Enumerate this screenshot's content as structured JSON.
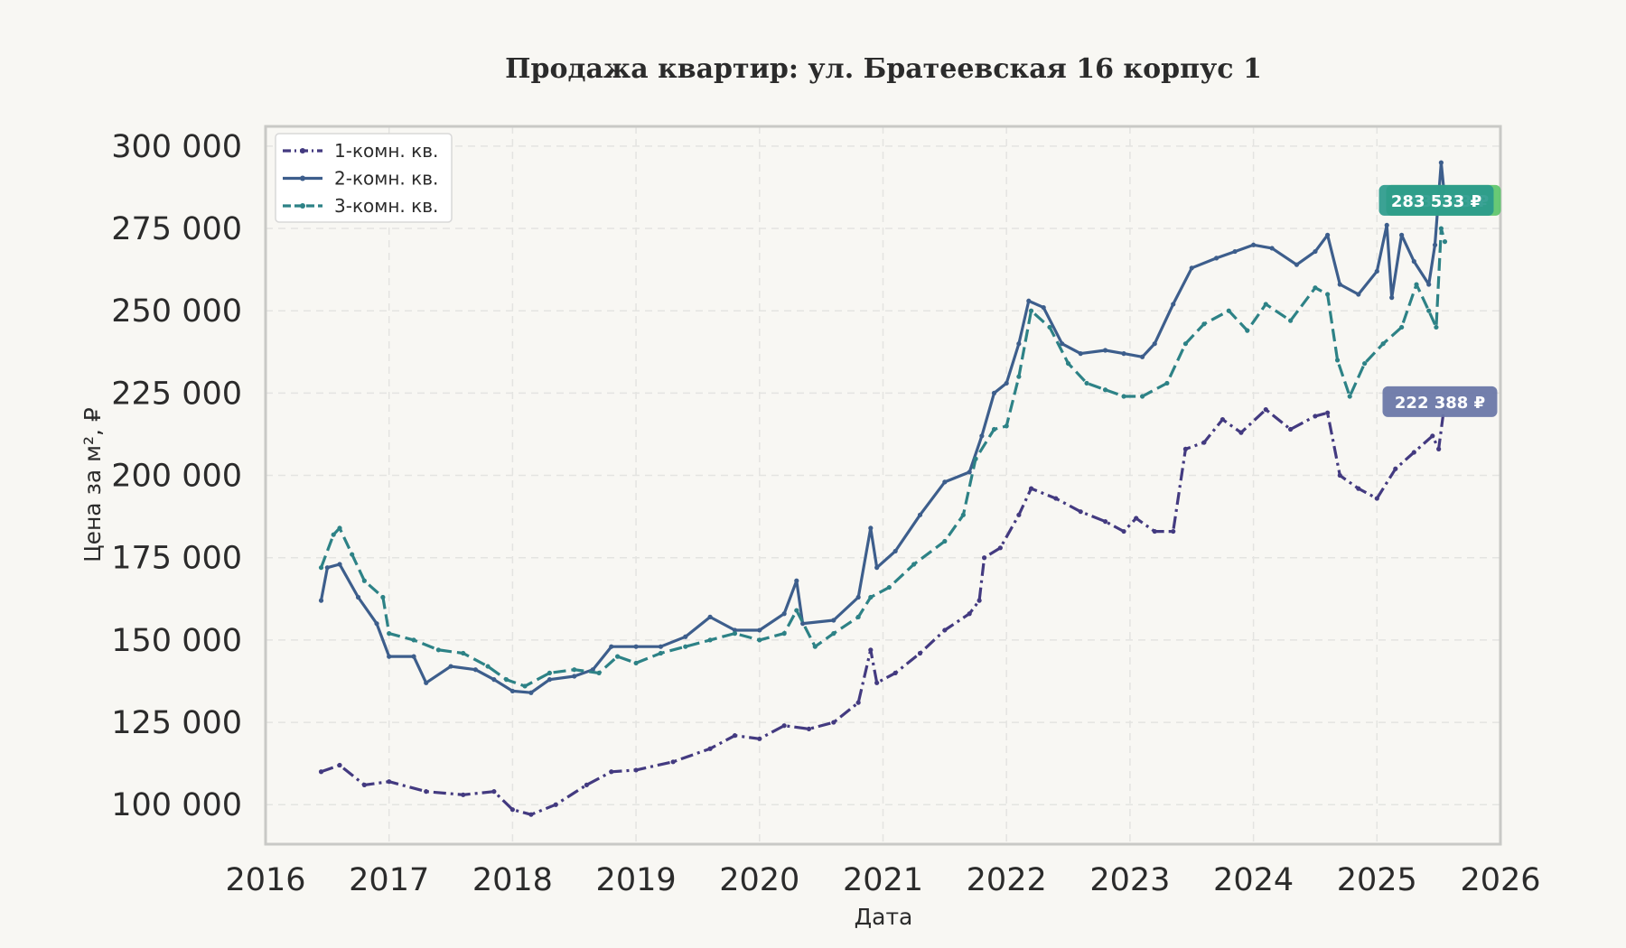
{
  "chart_data": {
    "type": "line",
    "title": "Продажа квартир: ул. Братеевская 16 корпус 1",
    "xlabel": "Дата",
    "ylabel": "Цена за м², ₽",
    "xlim": [
      2016,
      2026
    ],
    "ylim": [
      88000,
      306000
    ],
    "x_ticks": [
      2016,
      2017,
      2018,
      2019,
      2020,
      2021,
      2022,
      2023,
      2024,
      2025,
      2026
    ],
    "x_tick_labels": [
      "2016",
      "2017",
      "2018",
      "2019",
      "2020",
      "2021",
      "2022",
      "2023",
      "2024",
      "2025",
      "2026"
    ],
    "y_ticks": [
      100000,
      125000,
      150000,
      175000,
      200000,
      225000,
      250000,
      275000,
      300000
    ],
    "y_tick_labels": [
      "100 000",
      "125 000",
      "150 000",
      "175 000",
      "200 000",
      "225 000",
      "250 000",
      "275 000",
      "300 000"
    ],
    "grid": true,
    "legend_position": "top-left",
    "series": [
      {
        "name": "1-комн. кв.",
        "color": "#433a80",
        "dash": "dashdot",
        "points": [
          [
            2016.45,
            110000
          ],
          [
            2016.6,
            112000
          ],
          [
            2016.8,
            106000
          ],
          [
            2017.0,
            107000
          ],
          [
            2017.3,
            104000
          ],
          [
            2017.6,
            103000
          ],
          [
            2017.85,
            104000
          ],
          [
            2018.0,
            98500
          ],
          [
            2018.15,
            97000
          ],
          [
            2018.35,
            100000
          ],
          [
            2018.6,
            106000
          ],
          [
            2018.8,
            110000
          ],
          [
            2019.0,
            110500
          ],
          [
            2019.3,
            113000
          ],
          [
            2019.6,
            117000
          ],
          [
            2019.8,
            121000
          ],
          [
            2020.0,
            120000
          ],
          [
            2020.2,
            124000
          ],
          [
            2020.4,
            123000
          ],
          [
            2020.6,
            125000
          ],
          [
            2020.8,
            131000
          ],
          [
            2020.9,
            147000
          ],
          [
            2020.95,
            137000
          ],
          [
            2021.1,
            140000
          ],
          [
            2021.3,
            146000
          ],
          [
            2021.5,
            153000
          ],
          [
            2021.7,
            158000
          ],
          [
            2021.78,
            162000
          ],
          [
            2021.82,
            175000
          ],
          [
            2021.95,
            178000
          ],
          [
            2022.1,
            188000
          ],
          [
            2022.2,
            196000
          ],
          [
            2022.4,
            193000
          ],
          [
            2022.6,
            189000
          ],
          [
            2022.8,
            186000
          ],
          [
            2022.95,
            183000
          ],
          [
            2023.05,
            187000
          ],
          [
            2023.2,
            183000
          ],
          [
            2023.35,
            183000
          ],
          [
            2023.45,
            208000
          ],
          [
            2023.6,
            210000
          ],
          [
            2023.75,
            217000
          ],
          [
            2023.9,
            213000
          ],
          [
            2024.1,
            220000
          ],
          [
            2024.3,
            214000
          ],
          [
            2024.5,
            218000
          ],
          [
            2024.6,
            219000
          ],
          [
            2024.7,
            200000
          ],
          [
            2024.85,
            196000
          ],
          [
            2025.0,
            193000
          ],
          [
            2025.15,
            202000
          ],
          [
            2025.3,
            207000
          ],
          [
            2025.45,
            212000
          ],
          [
            2025.5,
            208000
          ],
          [
            2025.55,
            222388
          ]
        ]
      },
      {
        "name": "2-комн. кв.",
        "color": "#3d5e8c",
        "dash": "solid",
        "points": [
          [
            2016.45,
            162000
          ],
          [
            2016.5,
            172000
          ],
          [
            2016.6,
            173000
          ],
          [
            2016.75,
            163000
          ],
          [
            2016.9,
            155000
          ],
          [
            2017.0,
            145000
          ],
          [
            2017.2,
            145000
          ],
          [
            2017.3,
            137000
          ],
          [
            2017.5,
            142000
          ],
          [
            2017.7,
            141000
          ],
          [
            2017.85,
            138000
          ],
          [
            2018.0,
            134500
          ],
          [
            2018.15,
            134000
          ],
          [
            2018.3,
            138000
          ],
          [
            2018.5,
            139000
          ],
          [
            2018.65,
            141000
          ],
          [
            2018.8,
            148000
          ],
          [
            2019.0,
            148000
          ],
          [
            2019.2,
            148000
          ],
          [
            2019.4,
            151000
          ],
          [
            2019.6,
            157000
          ],
          [
            2019.8,
            153000
          ],
          [
            2020.0,
            153000
          ],
          [
            2020.2,
            158000
          ],
          [
            2020.3,
            168000
          ],
          [
            2020.35,
            155000
          ],
          [
            2020.6,
            156000
          ],
          [
            2020.8,
            163000
          ],
          [
            2020.9,
            184000
          ],
          [
            2020.95,
            172000
          ],
          [
            2021.1,
            177000
          ],
          [
            2021.3,
            188000
          ],
          [
            2021.5,
            198000
          ],
          [
            2021.7,
            201000
          ],
          [
            2021.8,
            212000
          ],
          [
            2021.9,
            225000
          ],
          [
            2022.0,
            228000
          ],
          [
            2022.1,
            240000
          ],
          [
            2022.18,
            253000
          ],
          [
            2022.3,
            251000
          ],
          [
            2022.45,
            240000
          ],
          [
            2022.6,
            237000
          ],
          [
            2022.8,
            238000
          ],
          [
            2022.95,
            237000
          ],
          [
            2023.1,
            236000
          ],
          [
            2023.2,
            240000
          ],
          [
            2023.35,
            252000
          ],
          [
            2023.5,
            263000
          ],
          [
            2023.7,
            266000
          ],
          [
            2023.85,
            268000
          ],
          [
            2024.0,
            270000
          ],
          [
            2024.15,
            269000
          ],
          [
            2024.35,
            264000
          ],
          [
            2024.5,
            268000
          ],
          [
            2024.6,
            273000
          ],
          [
            2024.7,
            258000
          ],
          [
            2024.85,
            255000
          ],
          [
            2025.0,
            262000
          ],
          [
            2025.08,
            276000
          ],
          [
            2025.12,
            254000
          ],
          [
            2025.2,
            273000
          ],
          [
            2025.3,
            265000
          ],
          [
            2025.42,
            258000
          ],
          [
            2025.47,
            270000
          ],
          [
            2025.52,
            295000
          ],
          [
            2025.55,
            283533
          ]
        ]
      },
      {
        "name": "3-комн. кв.",
        "color": "#2d8286",
        "dash": "dashed",
        "points": [
          [
            2016.45,
            172000
          ],
          [
            2016.55,
            182000
          ],
          [
            2016.6,
            184000
          ],
          [
            2016.7,
            176000
          ],
          [
            2016.8,
            168000
          ],
          [
            2016.95,
            163000
          ],
          [
            2017.0,
            152000
          ],
          [
            2017.2,
            150000
          ],
          [
            2017.4,
            147000
          ],
          [
            2017.6,
            146000
          ],
          [
            2017.8,
            142000
          ],
          [
            2017.95,
            138000
          ],
          [
            2018.1,
            136000
          ],
          [
            2018.3,
            140000
          ],
          [
            2018.5,
            141000
          ],
          [
            2018.7,
            140000
          ],
          [
            2018.85,
            145000
          ],
          [
            2019.0,
            143000
          ],
          [
            2019.2,
            146000
          ],
          [
            2019.4,
            148000
          ],
          [
            2019.6,
            150000
          ],
          [
            2019.8,
            152000
          ],
          [
            2020.0,
            150000
          ],
          [
            2020.2,
            152000
          ],
          [
            2020.3,
            159000
          ],
          [
            2020.45,
            148000
          ],
          [
            2020.6,
            152000
          ],
          [
            2020.8,
            157000
          ],
          [
            2020.9,
            163000
          ],
          [
            2021.05,
            166000
          ],
          [
            2021.25,
            173000
          ],
          [
            2021.5,
            180000
          ],
          [
            2021.65,
            188000
          ],
          [
            2021.75,
            205000
          ],
          [
            2021.9,
            214000
          ],
          [
            2022.0,
            215000
          ],
          [
            2022.1,
            230000
          ],
          [
            2022.2,
            250000
          ],
          [
            2022.35,
            245000
          ],
          [
            2022.5,
            234000
          ],
          [
            2022.65,
            228000
          ],
          [
            2022.8,
            226000
          ],
          [
            2022.95,
            224000
          ],
          [
            2023.1,
            224000
          ],
          [
            2023.3,
            228000
          ],
          [
            2023.45,
            240000
          ],
          [
            2023.6,
            246000
          ],
          [
            2023.8,
            250000
          ],
          [
            2023.95,
            244000
          ],
          [
            2024.1,
            252000
          ],
          [
            2024.3,
            247000
          ],
          [
            2024.5,
            257000
          ],
          [
            2024.6,
            255000
          ],
          [
            2024.68,
            235000
          ],
          [
            2024.78,
            224000
          ],
          [
            2024.9,
            234000
          ],
          [
            2025.05,
            240000
          ],
          [
            2025.2,
            245000
          ],
          [
            2025.32,
            258000
          ],
          [
            2025.42,
            250000
          ],
          [
            2025.48,
            245000
          ],
          [
            2025.52,
            275000
          ],
          [
            2025.55,
            271000
          ]
        ]
      }
    ],
    "annotations": [
      {
        "text": "283 533 ₽",
        "color": "#5cc46a",
        "x": 2025.55,
        "y": 283533
      },
      {
        "text": "283 533 ₽",
        "color": "#2a9a8c",
        "x": 2025.55,
        "y": 283533
      },
      {
        "text": "222 388 ₽",
        "color": "#6b78a8",
        "x": 2025.55,
        "y": 222388
      }
    ]
  }
}
